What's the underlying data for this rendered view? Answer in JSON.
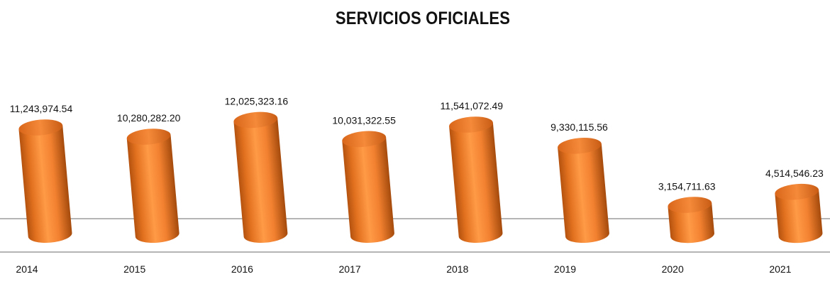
{
  "chart_data": {
    "type": "bar",
    "title": "SERVICIOS OFICIALES",
    "categories": [
      "2014",
      "2015",
      "2016",
      "2017",
      "2018",
      "2019",
      "2020",
      "2021"
    ],
    "values": [
      11243974.54,
      10280282.2,
      12025323.16,
      10031322.55,
      11541072.49,
      9330115.56,
      3154711.63,
      4514546.23
    ],
    "data_labels": [
      "11,243,974.54",
      "10,280,282.20",
      "12,025,323.16",
      "10,031,322.55",
      "11,541,072.49",
      "9,330,115.56",
      "3,154,711.63",
      "4,514,546.23"
    ],
    "bar_shape": "cylinder",
    "bar_color": "#F07F2A",
    "grid": true,
    "legend": "none"
  }
}
